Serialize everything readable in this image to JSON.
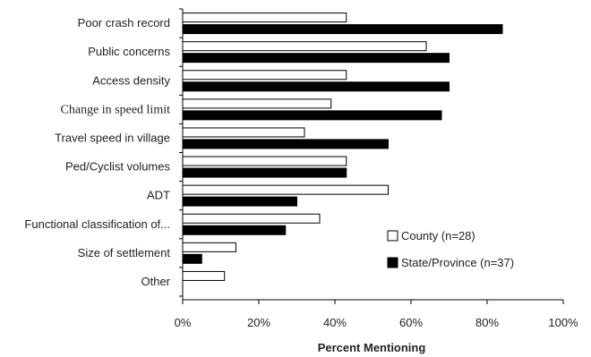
{
  "chart_data": {
    "type": "bar",
    "orientation": "horizontal",
    "categories": [
      "Poor crash record",
      "Public concerns",
      "Access density",
      "Change in speed limit",
      "Travel speed in village",
      "Ped/Cyclist volumes",
      "ADT",
      "Functional classification of...",
      "Size of settlement",
      "Other"
    ],
    "series": [
      {
        "name": "County (n=28)",
        "color": "#ffffff",
        "values": [
          43,
          64,
          43,
          39,
          32,
          43,
          54,
          36,
          14,
          11
        ]
      },
      {
        "name": "State/Province (n=37)",
        "color": "#000000",
        "values": [
          84,
          70,
          70,
          68,
          54,
          43,
          30,
          27,
          5,
          0
        ]
      }
    ],
    "xlabel": "Percent Mentioning",
    "xlim": [
      0,
      100
    ],
    "ticks": [
      "0%",
      "20%",
      "40%",
      "60%",
      "80%",
      "100%"
    ],
    "tick_values": [
      0,
      20,
      40,
      60,
      80,
      100
    ],
    "legend_position": "lower-right",
    "grid": false
  }
}
